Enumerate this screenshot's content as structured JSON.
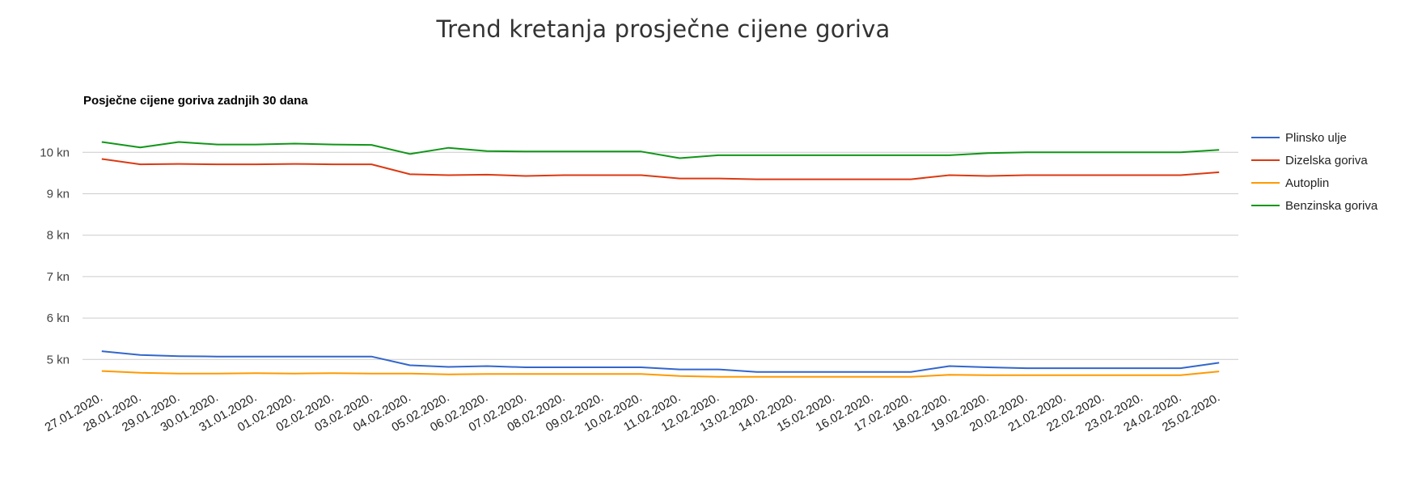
{
  "page": {
    "title": "Trend kretanja prosječne cijene goriva"
  },
  "chart_data": {
    "type": "line",
    "title": "Posječne cijene goriva zadnjih 30 dana",
    "xlabel": "",
    "ylabel": "",
    "ylim": [
      4.5,
      10.5
    ],
    "y_ticks": [
      5,
      6,
      7,
      8,
      9,
      10
    ],
    "y_tick_labels": [
      "5 kn",
      "6 kn",
      "7 kn",
      "8 kn",
      "9 kn",
      "10 kn"
    ],
    "grid": true,
    "legend_position": "right",
    "categories": [
      "27.01.2020.",
      "28.01.2020.",
      "29.01.2020.",
      "30.01.2020.",
      "31.01.2020.",
      "01.02.2020.",
      "02.02.2020.",
      "03.02.2020.",
      "04.02.2020.",
      "05.02.2020.",
      "06.02.2020.",
      "07.02.2020.",
      "08.02.2020.",
      "09.02.2020.",
      "10.02.2020.",
      "11.02.2020.",
      "12.02.2020.",
      "13.02.2020.",
      "14.02.2020.",
      "15.02.2020.",
      "16.02.2020.",
      "17.02.2020.",
      "18.02.2020.",
      "19.02.2020.",
      "20.02.2020.",
      "21.02.2020.",
      "22.02.2020.",
      "23.02.2020.",
      "24.02.2020.",
      "25.02.2020."
    ],
    "series": [
      {
        "name": "Plinsko ulje",
        "color": "#3366cc",
        "values": [
          5.2,
          5.11,
          5.08,
          5.07,
          5.07,
          5.07,
          5.07,
          5.07,
          4.86,
          4.82,
          4.84,
          4.81,
          4.81,
          4.81,
          4.81,
          4.76,
          4.76,
          4.7,
          4.7,
          4.7,
          4.7,
          4.7,
          4.84,
          4.81,
          4.79,
          4.79,
          4.79,
          4.79,
          4.79,
          4.92
        ]
      },
      {
        "name": "Dizelska goriva",
        "color": "#dc3912",
        "values": [
          9.84,
          9.71,
          9.72,
          9.71,
          9.71,
          9.72,
          9.71,
          9.71,
          9.47,
          9.45,
          9.46,
          9.43,
          9.45,
          9.45,
          9.45,
          9.37,
          9.37,
          9.35,
          9.35,
          9.35,
          9.35,
          9.35,
          9.45,
          9.43,
          9.45,
          9.45,
          9.45,
          9.45,
          9.45,
          9.52
        ]
      },
      {
        "name": "Autoplin",
        "color": "#ff9900",
        "values": [
          4.72,
          4.68,
          4.66,
          4.66,
          4.67,
          4.66,
          4.67,
          4.66,
          4.66,
          4.64,
          4.65,
          4.65,
          4.65,
          4.65,
          4.65,
          4.6,
          4.58,
          4.58,
          4.58,
          4.58,
          4.58,
          4.58,
          4.63,
          4.62,
          4.62,
          4.62,
          4.62,
          4.62,
          4.62,
          4.71
        ]
      },
      {
        "name": "Benzinska goriva",
        "color": "#109618",
        "values": [
          10.25,
          10.12,
          10.25,
          10.19,
          10.19,
          10.21,
          10.19,
          10.18,
          9.96,
          10.11,
          10.03,
          10.02,
          10.02,
          10.02,
          10.02,
          9.86,
          9.93,
          9.93,
          9.93,
          9.93,
          9.93,
          9.93,
          9.93,
          9.98,
          10.0,
          10.0,
          10.0,
          10.0,
          10.0,
          10.06
        ]
      }
    ]
  },
  "colors": {
    "gridline": "#cccccc",
    "axis_text": "#444444",
    "title_text": "#333333"
  }
}
